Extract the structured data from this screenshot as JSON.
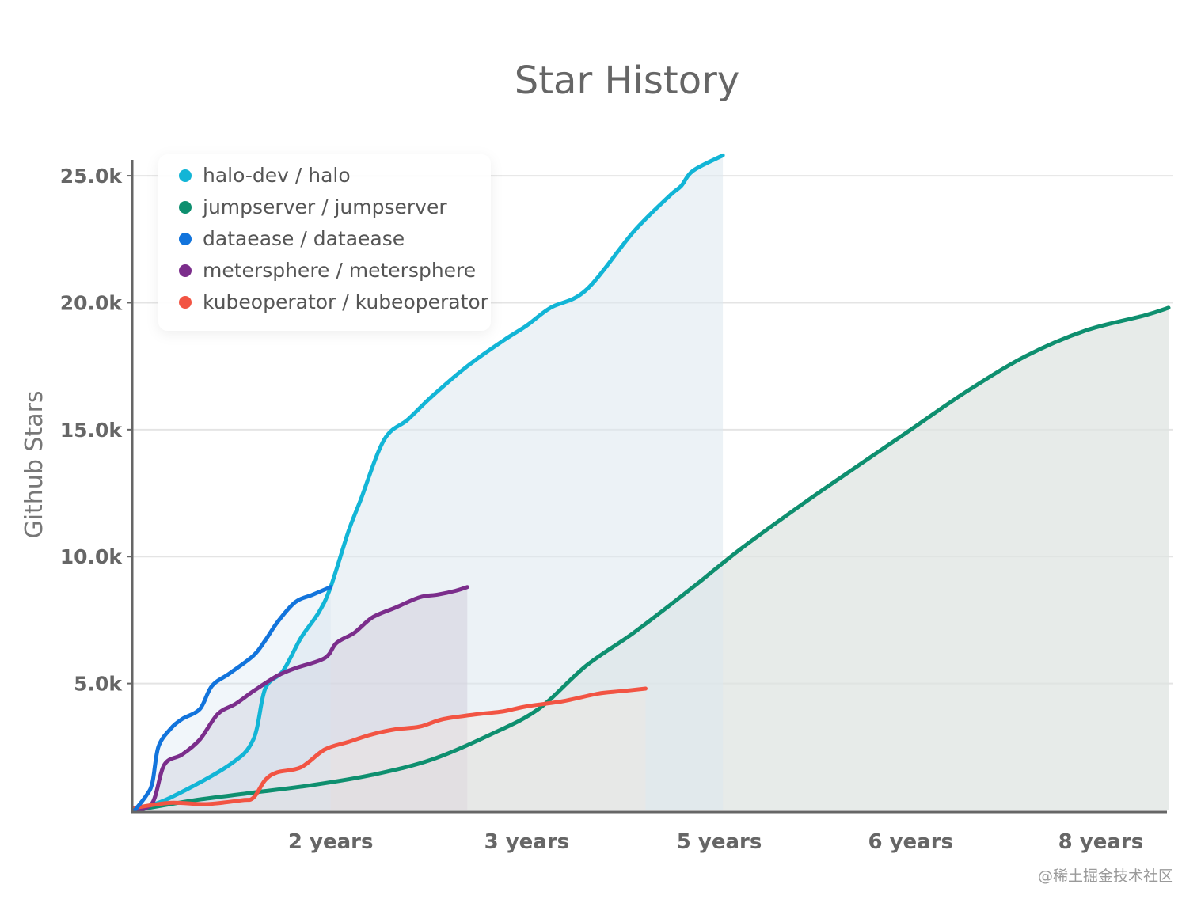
{
  "chart_data": {
    "type": "line",
    "title": "Star History",
    "ylabel": "Github Stars",
    "xlabel": "",
    "ylim": [
      0,
      26000
    ],
    "xlim": [
      0,
      8.7
    ],
    "yticks": [
      {
        "label": "25.0k",
        "value": 25000
      },
      {
        "label": "20.0k",
        "value": 20000
      },
      {
        "label": "15.0k",
        "value": 15000
      },
      {
        "label": "10.0k",
        "value": 10000
      },
      {
        "label": "5.0k",
        "value": 5000
      }
    ],
    "xticks": [
      {
        "label": "2 years",
        "value": 1.65
      },
      {
        "label": "3 years",
        "value": 3.3
      },
      {
        "label": "5 years",
        "value": 4.92
      },
      {
        "label": "6 years",
        "value": 6.53
      },
      {
        "label": "8 years",
        "value": 8.13
      }
    ],
    "grid": true,
    "legend_position": "top-left",
    "series": [
      {
        "name": "halo-dev / halo",
        "color": "#12b5d6",
        "x": [
          0,
          0.3,
          0.8,
          1.0,
          1.1,
          1.25,
          1.4,
          1.55,
          1.65,
          1.8,
          1.9,
          2.1,
          2.3,
          2.5,
          2.8,
          3.1,
          3.3,
          3.5,
          3.8,
          4.2,
          4.5,
          4.6,
          4.7,
          4.95
        ],
        "y": [
          0,
          500,
          1800,
          2800,
          4800,
          5500,
          6800,
          7800,
          8800,
          11000,
          12200,
          14600,
          15400,
          16300,
          17500,
          18500,
          19100,
          19800,
          20500,
          22800,
          24200,
          24600,
          25200,
          25800
        ]
      },
      {
        "name": "jumpserver / jumpserver",
        "color": "#0e8f6f",
        "x": [
          0,
          0.5,
          1.0,
          1.5,
          2.0,
          2.5,
          3.0,
          3.4,
          3.8,
          4.2,
          4.7,
          5.1,
          5.6,
          6.0,
          6.5,
          7.0,
          7.5,
          8.0,
          8.5,
          8.7
        ],
        "y": [
          0,
          400,
          700,
          1000,
          1400,
          2000,
          3000,
          4000,
          5700,
          7000,
          8800,
          10300,
          12000,
          13300,
          14900,
          16500,
          17900,
          18900,
          19500,
          19800
        ]
      },
      {
        "name": "dataease / dataease",
        "color": "#1274dc",
        "x": [
          0,
          0.1,
          0.15,
          0.2,
          0.3,
          0.4,
          0.55,
          0.65,
          0.8,
          1.0,
          1.1,
          1.2,
          1.35,
          1.5,
          1.65
        ],
        "y": [
          0,
          600,
          1100,
          2500,
          3200,
          3600,
          4000,
          4900,
          5400,
          6100,
          6700,
          7400,
          8200,
          8500,
          8800
        ]
      },
      {
        "name": "metersphere / metersphere",
        "color": "#7b2d8b",
        "x": [
          0,
          0.15,
          0.25,
          0.4,
          0.55,
          0.7,
          0.85,
          1.0,
          1.2,
          1.35,
          1.6,
          1.7,
          1.85,
          2.0,
          2.2,
          2.4,
          2.55,
          2.7,
          2.8
        ],
        "y": [
          0,
          300,
          1800,
          2200,
          2800,
          3800,
          4200,
          4700,
          5300,
          5600,
          6000,
          6600,
          7000,
          7600,
          8000,
          8400,
          8500,
          8650,
          8800
        ]
      },
      {
        "name": "kubeoperator / kubeoperator",
        "color": "#f25443",
        "x": [
          0,
          0.3,
          0.6,
          0.9,
          1.0,
          1.1,
          1.2,
          1.4,
          1.6,
          1.8,
          2.0,
          2.2,
          2.4,
          2.6,
          2.9,
          3.1,
          3.3,
          3.6,
          3.9,
          4.1,
          4.3
        ],
        "y": [
          100,
          300,
          250,
          400,
          500,
          1200,
          1500,
          1700,
          2400,
          2700,
          3000,
          3200,
          3300,
          3600,
          3800,
          3900,
          4100,
          4300,
          4600,
          4700,
          4800
        ]
      }
    ]
  },
  "watermark": "@稀土掘金技术社区"
}
